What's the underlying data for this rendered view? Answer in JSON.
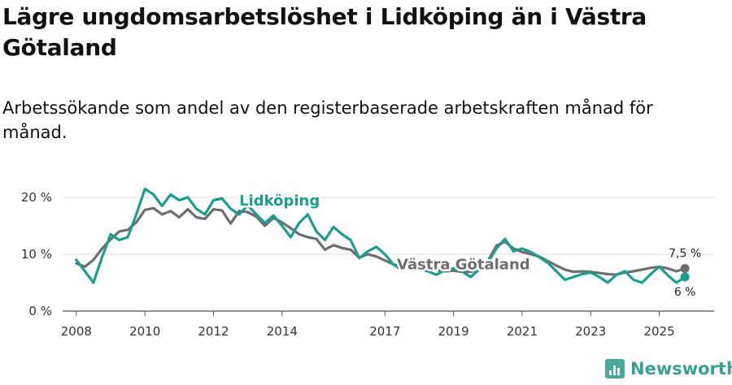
{
  "title": "Lägre ungdomsarbetslöshet i Lidköping än i Västra Götaland",
  "subtitle": "Arbetssökande som andel av den registerbaserade arbetskraften månad för månad.",
  "brand": {
    "name": "Newsworthy",
    "icon": "bar-chart-icon"
  },
  "chart_data": {
    "type": "line",
    "title": "Lägre ungdomsarbetslöshet i Lidköping än i Västra Götaland",
    "xlabel": "",
    "ylabel": "",
    "x_unit": "år (månadsdata)",
    "xlim": [
      2007.6,
      2026.6
    ],
    "ylim": [
      0,
      20
    ],
    "y_ticks": [
      0,
      10,
      20
    ],
    "y_tick_labels": [
      "0 %",
      "10 %",
      "20 %"
    ],
    "x_ticks": [
      2008,
      2010,
      2012,
      2014,
      2017,
      2019,
      2021,
      2023,
      2025
    ],
    "x_tick_labels": [
      "2008",
      "2010",
      "2012",
      "2014",
      "2017",
      "2019",
      "2021",
      "2023",
      "2025"
    ],
    "grid": true,
    "series": [
      {
        "name": "Västra Götaland",
        "label": "Västra Götaland",
        "color": "#6e6e6e",
        "end_value": 7.5,
        "end_label": "7,5 %",
        "points": [
          [
            2008.0,
            8.4
          ],
          [
            2008.25,
            7.8
          ],
          [
            2008.5,
            9.0
          ],
          [
            2008.75,
            11.0
          ],
          [
            2009.0,
            12.6
          ],
          [
            2009.25,
            14.0
          ],
          [
            2009.5,
            14.3
          ],
          [
            2009.75,
            15.6
          ],
          [
            2010.0,
            17.8
          ],
          [
            2010.25,
            18.1
          ],
          [
            2010.5,
            17.0
          ],
          [
            2010.75,
            17.6
          ],
          [
            2011.0,
            16.5
          ],
          [
            2011.25,
            17.9
          ],
          [
            2011.5,
            16.5
          ],
          [
            2011.75,
            16.2
          ],
          [
            2012.0,
            17.9
          ],
          [
            2012.25,
            17.7
          ],
          [
            2012.5,
            15.4
          ],
          [
            2012.75,
            17.6
          ],
          [
            2013.0,
            17.4
          ],
          [
            2013.25,
            16.6
          ],
          [
            2013.5,
            15.0
          ],
          [
            2013.75,
            16.4
          ],
          [
            2014.0,
            15.6
          ],
          [
            2014.25,
            14.6
          ],
          [
            2014.5,
            13.5
          ],
          [
            2014.75,
            13.0
          ],
          [
            2015.0,
            12.7
          ],
          [
            2015.25,
            10.8
          ],
          [
            2015.5,
            11.6
          ],
          [
            2015.75,
            11.1
          ],
          [
            2016.0,
            10.8
          ],
          [
            2016.25,
            9.4
          ],
          [
            2016.5,
            10.0
          ],
          [
            2016.75,
            9.6
          ],
          [
            2017.0,
            8.9
          ],
          [
            2017.25,
            8.2
          ],
          [
            2017.5,
            7.8
          ],
          [
            2017.75,
            8.2
          ],
          [
            2018.0,
            7.6
          ],
          [
            2018.25,
            7.4
          ],
          [
            2018.5,
            7.2
          ],
          [
            2018.75,
            7.0
          ],
          [
            2019.0,
            7.1
          ],
          [
            2019.25,
            6.9
          ],
          [
            2019.5,
            6.9
          ],
          [
            2019.75,
            7.3
          ],
          [
            2020.0,
            8.8
          ],
          [
            2020.25,
            11.5
          ],
          [
            2020.5,
            12.2
          ],
          [
            2020.75,
            11.0
          ],
          [
            2021.0,
            10.4
          ],
          [
            2021.25,
            10.0
          ],
          [
            2021.5,
            9.6
          ],
          [
            2021.75,
            8.8
          ],
          [
            2022.0,
            8.0
          ],
          [
            2022.25,
            7.3
          ],
          [
            2022.5,
            6.9
          ],
          [
            2022.75,
            7.0
          ],
          [
            2023.0,
            6.9
          ],
          [
            2023.25,
            6.7
          ],
          [
            2023.5,
            6.5
          ],
          [
            2023.75,
            6.4
          ],
          [
            2024.0,
            6.8
          ],
          [
            2024.25,
            7.0
          ],
          [
            2024.5,
            7.3
          ],
          [
            2024.75,
            7.6
          ],
          [
            2025.0,
            7.8
          ],
          [
            2025.25,
            7.5
          ],
          [
            2025.5,
            7.0
          ],
          [
            2025.75,
            7.5
          ]
        ]
      },
      {
        "name": "Lidköping",
        "label": "Lidköping",
        "color": "#1c9e8f",
        "end_value": 6,
        "end_label": "6 %",
        "points": [
          [
            2008.0,
            9.0
          ],
          [
            2008.25,
            7.0
          ],
          [
            2008.5,
            5.0
          ],
          [
            2008.75,
            9.5
          ],
          [
            2009.0,
            13.5
          ],
          [
            2009.25,
            12.5
          ],
          [
            2009.5,
            13.0
          ],
          [
            2009.75,
            17.0
          ],
          [
            2010.0,
            21.5
          ],
          [
            2010.25,
            20.5
          ],
          [
            2010.5,
            18.5
          ],
          [
            2010.75,
            20.5
          ],
          [
            2011.0,
            19.5
          ],
          [
            2011.25,
            20.0
          ],
          [
            2011.5,
            18.0
          ],
          [
            2011.75,
            17.0
          ],
          [
            2012.0,
            19.5
          ],
          [
            2012.25,
            19.8
          ],
          [
            2012.5,
            18.0
          ],
          [
            2012.75,
            17.0
          ],
          [
            2013.0,
            18.6
          ],
          [
            2013.25,
            17.0
          ],
          [
            2013.5,
            15.5
          ],
          [
            2013.75,
            16.8
          ],
          [
            2014.0,
            15.0
          ],
          [
            2014.25,
            13.0
          ],
          [
            2014.5,
            15.5
          ],
          [
            2014.75,
            17.0
          ],
          [
            2015.0,
            14.0
          ],
          [
            2015.25,
            12.5
          ],
          [
            2015.5,
            14.8
          ],
          [
            2015.75,
            13.5
          ],
          [
            2016.0,
            12.5
          ],
          [
            2016.25,
            9.3
          ],
          [
            2016.5,
            10.5
          ],
          [
            2016.75,
            11.3
          ],
          [
            2017.0,
            10.0
          ],
          [
            2017.25,
            8.2
          ],
          [
            2017.5,
            7.2
          ],
          [
            2017.75,
            8.5
          ],
          [
            2018.0,
            7.5
          ],
          [
            2018.25,
            7.0
          ],
          [
            2018.5,
            6.4
          ],
          [
            2018.75,
            7.2
          ],
          [
            2019.0,
            7.5
          ],
          [
            2019.25,
            7.0
          ],
          [
            2019.5,
            6.0
          ],
          [
            2019.75,
            7.3
          ],
          [
            2020.0,
            8.5
          ],
          [
            2020.25,
            11.0
          ],
          [
            2020.5,
            12.7
          ],
          [
            2020.75,
            10.5
          ],
          [
            2021.0,
            11.0
          ],
          [
            2021.25,
            10.4
          ],
          [
            2021.5,
            9.5
          ],
          [
            2021.75,
            8.5
          ],
          [
            2022.0,
            7.0
          ],
          [
            2022.25,
            5.5
          ],
          [
            2022.5,
            6.0
          ],
          [
            2022.75,
            6.5
          ],
          [
            2023.0,
            6.8
          ],
          [
            2023.25,
            6.0
          ],
          [
            2023.5,
            5.0
          ],
          [
            2023.75,
            6.4
          ],
          [
            2024.0,
            7.0
          ],
          [
            2024.25,
            5.5
          ],
          [
            2024.5,
            5.0
          ],
          [
            2024.75,
            6.5
          ],
          [
            2025.0,
            7.8
          ],
          [
            2025.25,
            6.3
          ],
          [
            2025.5,
            5.0
          ],
          [
            2025.75,
            6.0
          ]
        ]
      }
    ],
    "annotations": [
      {
        "series": "Lidköping",
        "text": "Lidköping",
        "x": 2012.75,
        "y": 19.4
      },
      {
        "series": "Västra Götaland",
        "text": "Västra Götaland",
        "x": 2017.35,
        "y": 8.2
      }
    ]
  }
}
